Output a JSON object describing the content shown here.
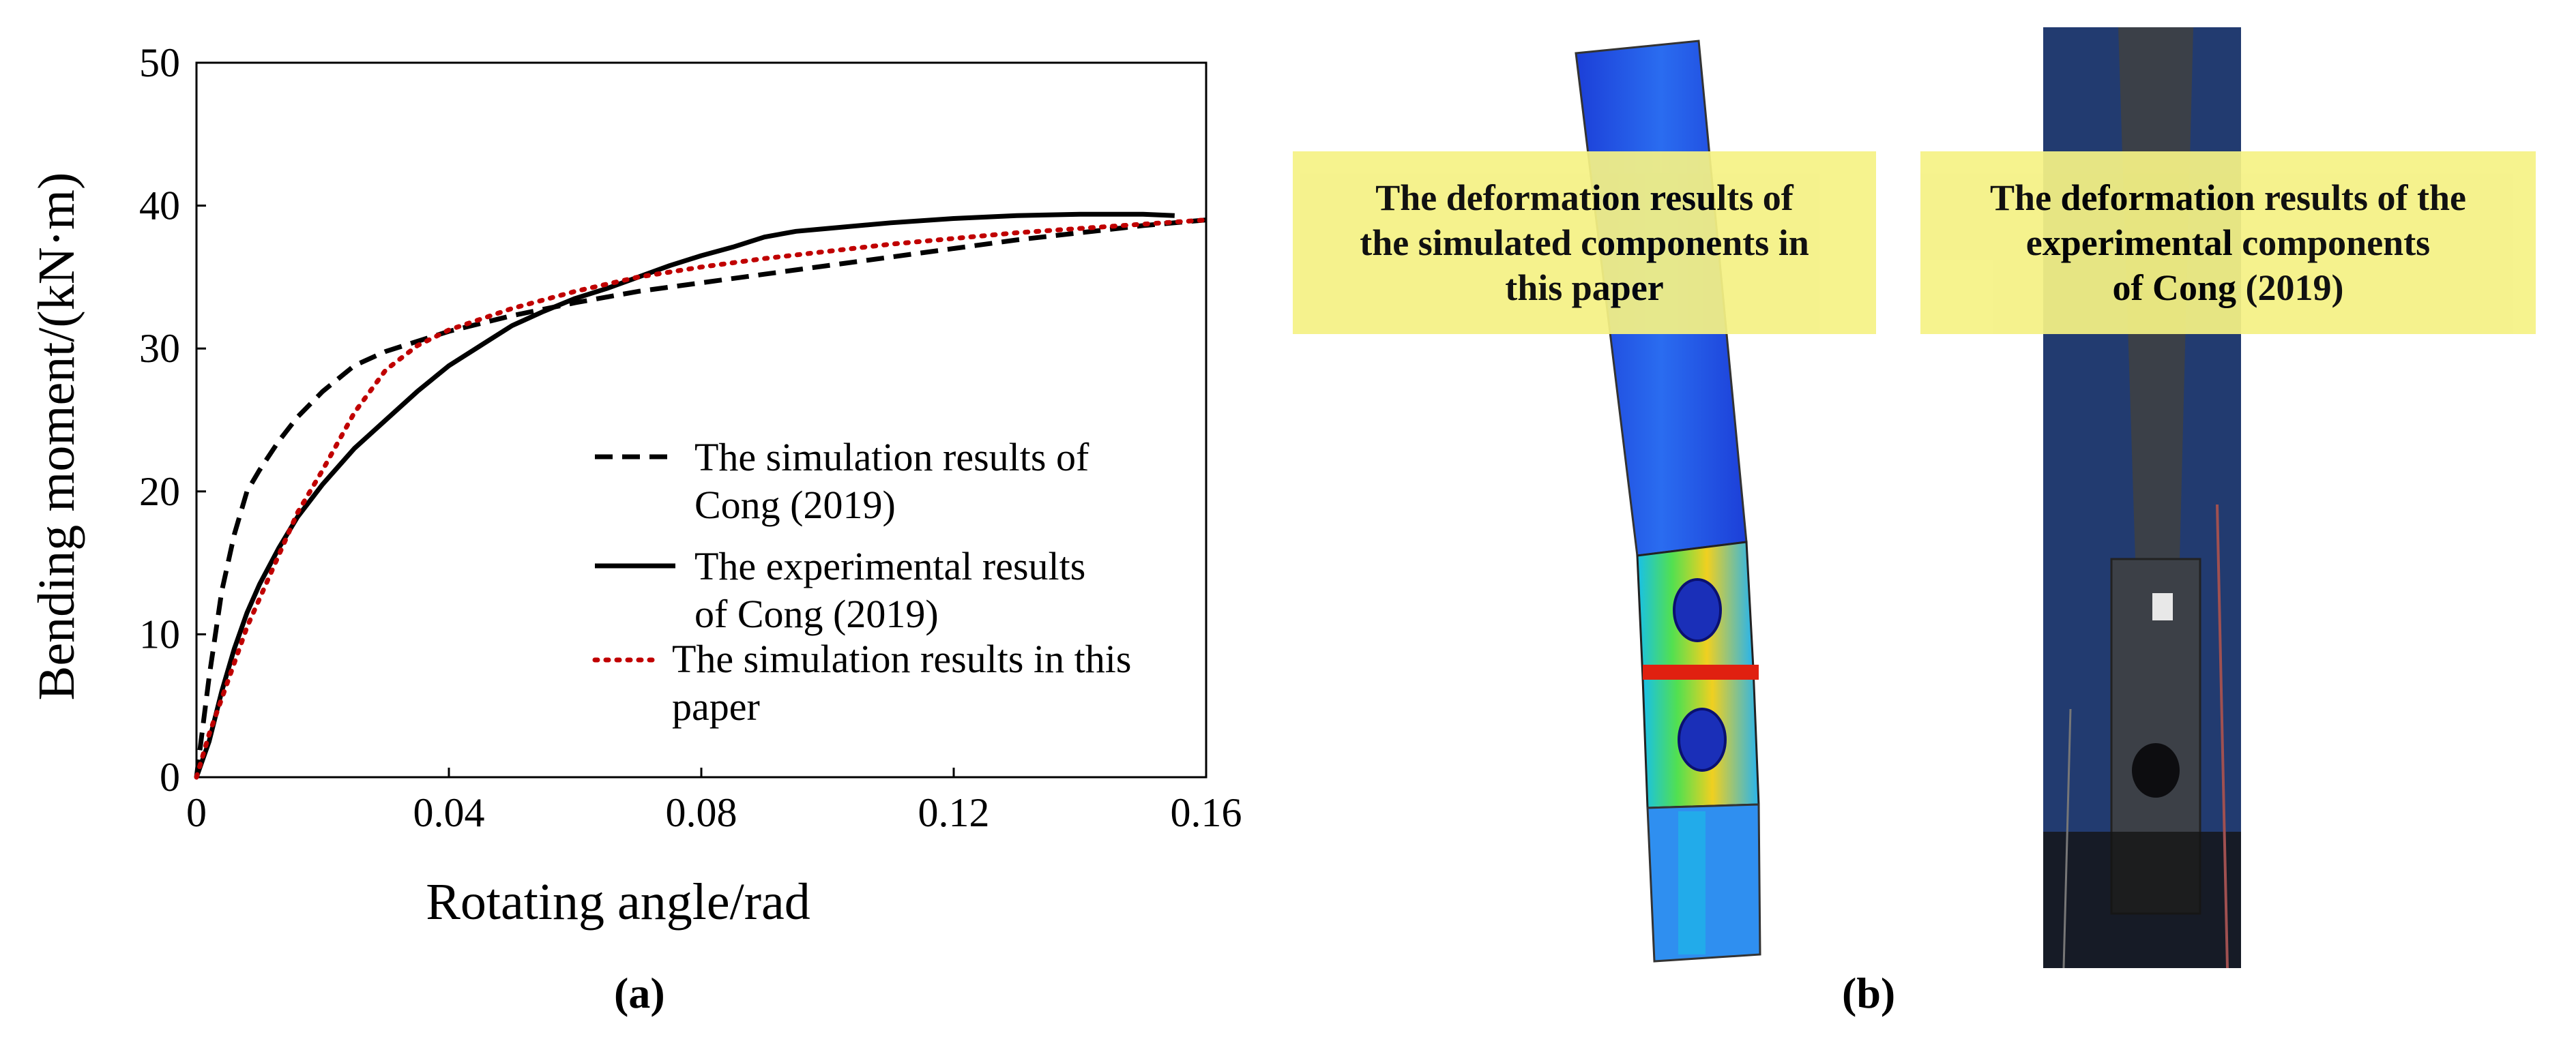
{
  "panel_a_label": "(a)",
  "panel_b_label": "(b)",
  "callouts": {
    "simulated": [
      "The deformation results of",
      "the simulated components in",
      "this paper"
    ],
    "experimental": [
      "The deformation results of the",
      "experimental components",
      "of Cong (2019)"
    ]
  },
  "chart_data": {
    "type": "line",
    "title": "",
    "xlabel": "Rotating angle/rad",
    "ylabel": "Bending moment/(kN·m)",
    "xlim": [
      0,
      0.16
    ],
    "ylim": [
      0,
      50
    ],
    "xticks": [
      "0",
      "0.04",
      "0.08",
      "0.12",
      "0.16"
    ],
    "yticks": [
      "0",
      "10",
      "20",
      "30",
      "40",
      "50"
    ],
    "grid": false,
    "legend_placement": "center-right",
    "series": [
      {
        "name": "The simulation results of Cong (2019)",
        "legend_lines": [
          "The simulation results of",
          "Cong (2019)"
        ],
        "style": "dashed",
        "color": "#000000",
        "x": [
          0,
          0.002,
          0.004,
          0.006,
          0.008,
          0.01,
          0.013,
          0.016,
          0.02,
          0.025,
          0.03,
          0.04,
          0.05,
          0.06,
          0.07,
          0.08,
          0.09,
          0.1,
          0.11,
          0.12,
          0.13,
          0.14,
          0.15,
          0.16
        ],
        "y": [
          0,
          7,
          13,
          17,
          20,
          21.5,
          23.5,
          25.2,
          27,
          28.8,
          29.8,
          31.2,
          32.3,
          33.2,
          34,
          34.6,
          35.2,
          35.8,
          36.4,
          37,
          37.6,
          38.1,
          38.6,
          39
        ]
      },
      {
        "name": "The experimental results of Cong (2019)",
        "legend_lines": [
          "The experimental results",
          "of Cong (2019)"
        ],
        "style": "solid",
        "color": "#000000",
        "x": [
          0,
          0.002,
          0.004,
          0.006,
          0.008,
          0.01,
          0.013,
          0.016,
          0.02,
          0.025,
          0.03,
          0.035,
          0.04,
          0.045,
          0.05,
          0.055,
          0.06,
          0.065,
          0.07,
          0.075,
          0.08,
          0.085,
          0.09,
          0.095,
          0.1,
          0.11,
          0.12,
          0.13,
          0.14,
          0.15,
          0.155
        ],
        "y": [
          0,
          2.5,
          6,
          9,
          11.5,
          13.5,
          16,
          18.2,
          20.5,
          23,
          25,
          27,
          28.8,
          30.2,
          31.6,
          32.6,
          33.5,
          34.2,
          35,
          35.8,
          36.5,
          37.1,
          37.8,
          38.2,
          38.4,
          38.8,
          39.1,
          39.3,
          39.4,
          39.4,
          39.3
        ]
      },
      {
        "name": "The simulation results in this paper",
        "legend_lines": [
          "The simulation results in this",
          "paper"
        ],
        "style": "dotted",
        "color": "#c00000",
        "x": [
          0,
          0.002,
          0.004,
          0.006,
          0.008,
          0.01,
          0.013,
          0.016,
          0.02,
          0.025,
          0.03,
          0.035,
          0.04,
          0.05,
          0.06,
          0.07,
          0.08,
          0.09,
          0.1,
          0.11,
          0.12,
          0.13,
          0.14,
          0.15,
          0.16
        ],
        "y": [
          0,
          3,
          5.5,
          8,
          10.5,
          12.5,
          15.5,
          18.5,
          21.5,
          25.5,
          28.5,
          30.2,
          31.3,
          32.8,
          34,
          35,
          35.7,
          36.3,
          36.8,
          37.3,
          37.7,
          38.1,
          38.4,
          38.7,
          39
        ]
      }
    ]
  }
}
